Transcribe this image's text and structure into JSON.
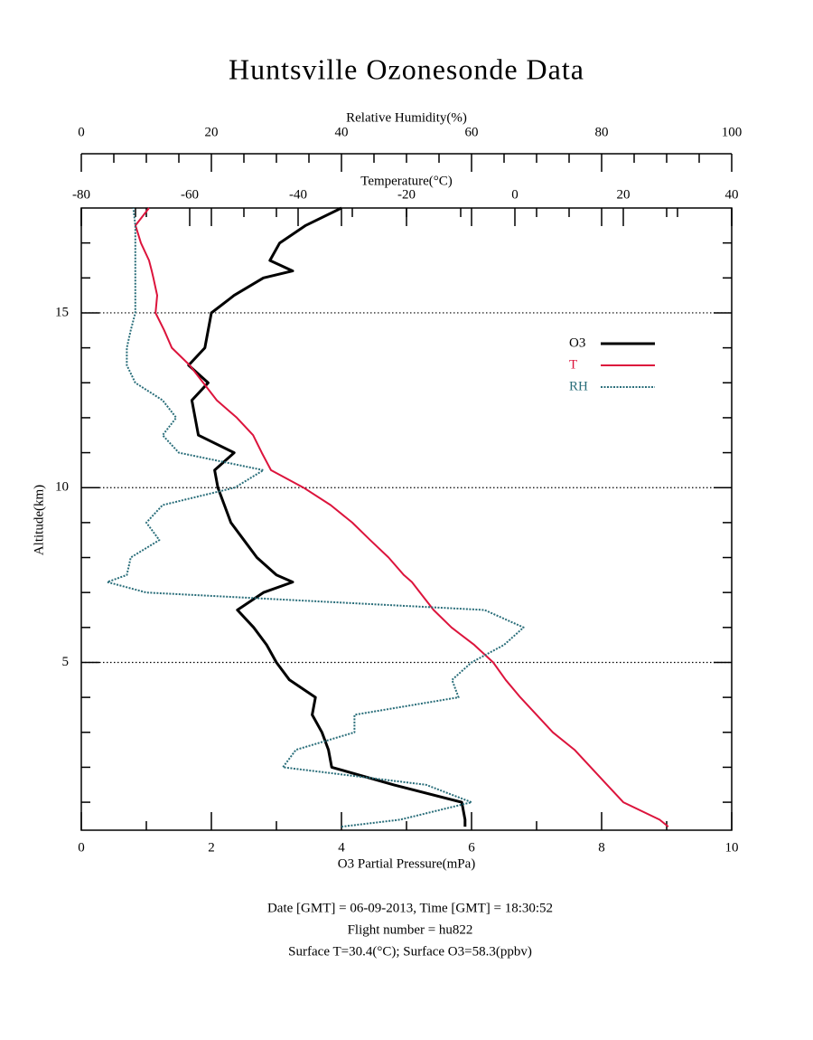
{
  "chart_data": {
    "type": "line",
    "title": "Huntsville Ozonesonde Data",
    "xlabel": "O3 Partial Pressure(mPa)",
    "x2label": "Temperature(°C)",
    "x3label": "Relative Humidity(%)",
    "ylabel": "Altitude(km)",
    "xlim": [
      0,
      10
    ],
    "xticks": [
      0,
      2,
      4,
      6,
      8,
      10
    ],
    "xminorticks": [
      1,
      3,
      5,
      7,
      9
    ],
    "x2lim": [
      -80,
      40
    ],
    "x2ticks": [
      -80,
      -60,
      -40,
      -20,
      0,
      20,
      40
    ],
    "x2minorticks": [
      -70,
      -50,
      -30,
      -10,
      10,
      30
    ],
    "x3lim": [
      0,
      100
    ],
    "x3ticks": [
      0,
      20,
      40,
      60,
      80,
      100
    ],
    "x3minorticks": [
      5,
      10,
      15,
      25,
      30,
      35,
      45,
      50,
      55,
      65,
      70,
      75,
      85,
      90,
      95
    ],
    "ylim": [
      0.2,
      18
    ],
    "yticks": [
      5,
      10,
      15
    ],
    "yminorticks": [
      1,
      2,
      3,
      4,
      6,
      7,
      8,
      9,
      11,
      12,
      13,
      14,
      16,
      17
    ],
    "grid": true,
    "legend": "right",
    "y": [
      0.3,
      0.5,
      1,
      1.5,
      2,
      2.5,
      3,
      3.5,
      4,
      4.5,
      5,
      5.5,
      6,
      6.5,
      7,
      7.3,
      7.5,
      8,
      8.5,
      9,
      9.5,
      10,
      10.5,
      11,
      11.5,
      12,
      12.5,
      13,
      13.5,
      14,
      14.5,
      15,
      15.5,
      16,
      16.2,
      16.5,
      17,
      17.5,
      18
    ],
    "series": [
      {
        "name": "O3",
        "color": "#000000",
        "axis": "x",
        "values": [
          5.9,
          5.9,
          5.85,
          4.8,
          3.85,
          3.8,
          3.7,
          3.55,
          3.6,
          3.2,
          3.0,
          2.85,
          2.65,
          2.4,
          2.8,
          3.25,
          3.0,
          2.7,
          2.5,
          2.3,
          2.2,
          2.1,
          2.05,
          2.35,
          1.8,
          1.75,
          1.7,
          1.95,
          1.65,
          1.9,
          1.95,
          2.0,
          2.35,
          2.8,
          3.25,
          2.9,
          3.05,
          3.45,
          4.0
        ]
      },
      {
        "name": "T",
        "color": "#dc143c",
        "axis": "x2",
        "values": [
          28.3,
          26.7,
          20,
          17,
          14,
          11,
          7,
          4,
          1,
          -1.7,
          -4,
          -7.5,
          -11.7,
          -15,
          -17.5,
          -19,
          -20.5,
          -23.3,
          -26.7,
          -30,
          -34,
          -39,
          -45,
          -46.7,
          -48.3,
          -51.3,
          -55,
          -57.5,
          -60,
          -63.3,
          -64.7,
          -66.3,
          -66,
          -66.7,
          -67,
          -67.5,
          -69,
          -70,
          -67.5
        ]
      },
      {
        "name": "RH",
        "color": "#2a6e7a",
        "axis": "x3",
        "values": [
          40,
          49,
          60,
          53,
          31,
          33,
          42,
          42,
          58,
          57,
          60,
          65,
          68,
          62,
          10,
          4,
          7,
          7.6,
          12,
          10,
          12.5,
          23.6,
          28,
          15,
          12.5,
          14.6,
          12.5,
          8.3,
          7,
          7,
          7.6,
          8.3,
          8.3,
          8.3,
          8.3,
          8.3,
          8.3,
          8.3,
          8
        ]
      }
    ],
    "notes": [
      "Date [GMT] = 06-09-2013,  Time [GMT] = 18:30:52",
      "Flight number = hu822",
      "Surface T=30.4(°C); Surface O3=58.3(ppbv)"
    ]
  }
}
